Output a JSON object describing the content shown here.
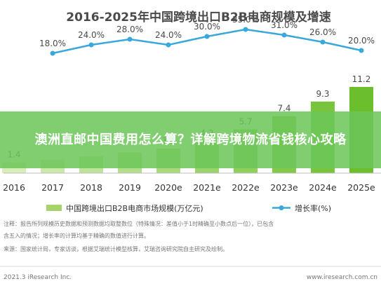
{
  "banner": {
    "text": "澳洲直邮中国费用怎么算？详解跨境物流省钱核心攻略"
  },
  "chart_data": {
    "type": "bar",
    "title": "2016-2025年中国跨境出口B2B电商规模及增速",
    "categories": [
      "2016",
      "2017",
      "2018",
      "2019",
      "2020e",
      "2021e",
      "2022e",
      "2023e",
      "2024e",
      "2025e"
    ],
    "series": [
      {
        "name": "中国跨境出口B2B电商市场规模(万亿元)",
        "type": "bar",
        "values": [
          1.4,
          1.7,
          2.2,
          2.7,
          3.2,
          4.2,
          5.7,
          7.4,
          9.3,
          11.2
        ],
        "labels": [
          "1.4",
          "",
          "",
          "",
          "3.2",
          "4.2",
          "5.7",
          "7.4",
          "9.3",
          "11.2"
        ]
      },
      {
        "name": "增长率(%)",
        "type": "line",
        "values": [
          18.0,
          24.0,
          28.0,
          24.0,
          30.0,
          35.0,
          31.0,
          26.0,
          20.0
        ],
        "labels": [
          "18.0%",
          "24.0%",
          "28.0%",
          "24.0%",
          "30.0%",
          "35.0%",
          "31.0%",
          "26.0%",
          "20.0%"
        ],
        "x": [
          "2017",
          "2018",
          "2019",
          "2020e",
          "2021e",
          "2022e",
          "2023e",
          "2024e",
          "2025e"
        ]
      }
    ],
    "legend": "bottom",
    "colors": {
      "bar_light": "#c8e6a0",
      "bar_dark": "#7bc043",
      "line": "#3aa8dc",
      "title": "#4a4a4a"
    },
    "notes": [
      "注释：报告所列规模历史数据和预测数据均取整数位（特殊情况：差值小于1时精确至小数点后一位），已包含",
      "含五入的情况；增长率的计算均基于精确的数值进行计算。",
      "来源：国家统计局，专家访谈，根据艾瑞统计模型核算，艾瑞咨询研究院自主研究及绘制。"
    ],
    "footer_left": "2021.3 iResearch Inc.",
    "footer_right": "www.iresearch.com.cn"
  }
}
